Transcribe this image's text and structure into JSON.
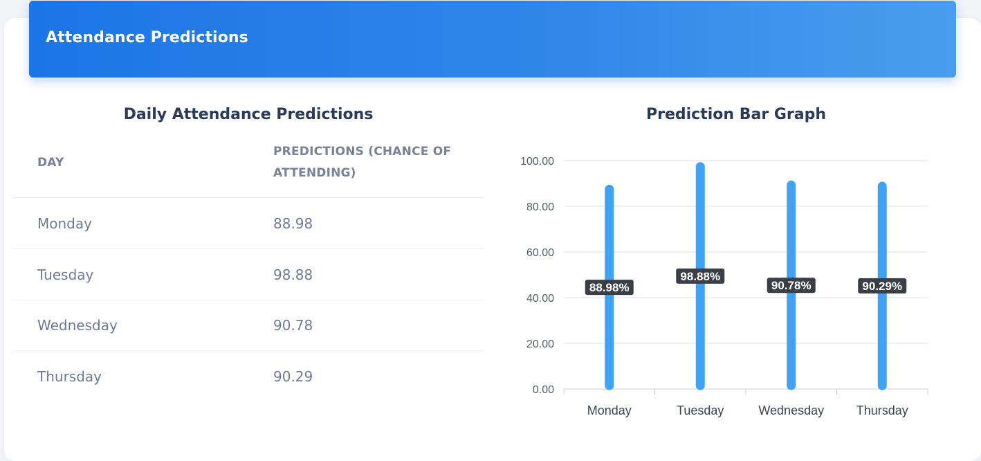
{
  "header": {
    "title": "Attendance Predictions"
  },
  "table": {
    "title": "Daily Attendance Predictions",
    "columns": [
      "Day",
      "Predictions (Chance of Attending)"
    ],
    "rows": [
      {
        "day": "Monday",
        "value": "88.98"
      },
      {
        "day": "Tuesday",
        "value": "98.88"
      },
      {
        "day": "Wednesday",
        "value": "90.78"
      },
      {
        "day": "Thursday",
        "value": "90.29"
      }
    ]
  },
  "chart_data": {
    "type": "bar",
    "title": "Prediction Bar Graph",
    "categories": [
      "Monday",
      "Tuesday",
      "Wednesday",
      "Thursday"
    ],
    "values": [
      88.98,
      98.88,
      90.78,
      90.29
    ],
    "data_labels": [
      "88.98%",
      "98.88%",
      "90.78%",
      "90.29%"
    ],
    "y_ticks": [
      "0.00",
      "20.00",
      "40.00",
      "60.00",
      "80.00",
      "100.00"
    ],
    "ylim": [
      0,
      100
    ],
    "xlabel": "",
    "ylabel": "",
    "grid": true,
    "bar_color": "#42a1f1",
    "label_bg": "#3b3f45"
  },
  "colors": {
    "header_gradient_start": "#1d74e6",
    "header_gradient_end": "#4a9ded",
    "title_text": "#2b3a57",
    "body_text": "#707a93"
  }
}
